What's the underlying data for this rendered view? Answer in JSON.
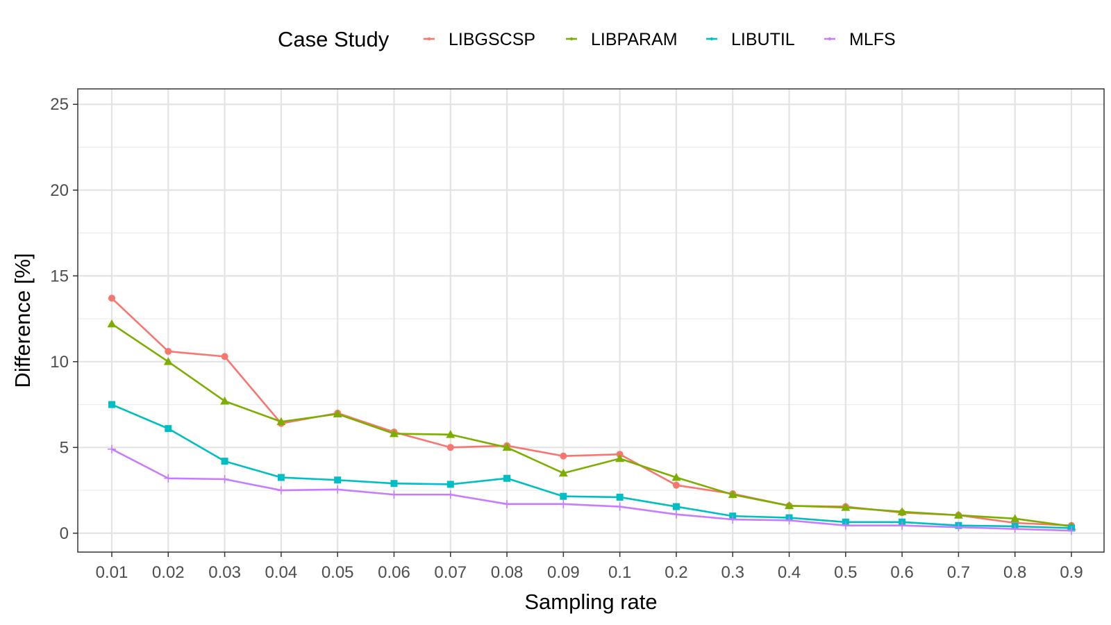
{
  "chart_data": {
    "type": "line",
    "xlabel": "Sampling rate",
    "ylabel": "Difference [%]",
    "categories": [
      "0.01",
      "0.02",
      "0.03",
      "0.04",
      "0.05",
      "0.06",
      "0.07",
      "0.08",
      "0.09",
      "0.1",
      "0.2",
      "0.3",
      "0.4",
      "0.5",
      "0.6",
      "0.7",
      "0.8",
      "0.9"
    ],
    "ylim": [
      -1.1,
      25.9
    ],
    "yticks": [
      0,
      5,
      10,
      15,
      20,
      25
    ],
    "grid": true,
    "legend": {
      "title": "Case Study",
      "position": "top"
    },
    "series": [
      {
        "name": "LIBGSCSP",
        "color": "#F8766D",
        "marker": "circle",
        "values": [
          13.7,
          10.6,
          10.3,
          6.4,
          7.0,
          5.9,
          5.0,
          5.1,
          4.5,
          4.6,
          2.8,
          2.3,
          1.6,
          1.55,
          1.2,
          1.05,
          0.6,
          0.45
        ]
      },
      {
        "name": "LIBPARAM",
        "color": "#7CAE00",
        "marker": "triangle",
        "values": [
          12.2,
          10.0,
          7.7,
          6.5,
          6.95,
          5.8,
          5.75,
          5.0,
          3.5,
          4.35,
          3.25,
          2.25,
          1.6,
          1.5,
          1.25,
          1.05,
          0.85,
          0.4
        ]
      },
      {
        "name": "LIBUTIL",
        "color": "#00BFC4",
        "marker": "square",
        "values": [
          7.5,
          6.1,
          4.2,
          3.25,
          3.1,
          2.9,
          2.85,
          3.2,
          2.15,
          2.1,
          1.55,
          1.0,
          0.9,
          0.65,
          0.65,
          0.45,
          0.4,
          0.3
        ]
      },
      {
        "name": "MLFS",
        "color": "#C77CFF",
        "marker": "cross",
        "values": [
          4.9,
          3.2,
          3.15,
          2.5,
          2.55,
          2.25,
          2.25,
          1.7,
          1.7,
          1.55,
          1.1,
          0.8,
          0.75,
          0.45,
          0.45,
          0.35,
          0.25,
          0.15
        ]
      }
    ]
  }
}
